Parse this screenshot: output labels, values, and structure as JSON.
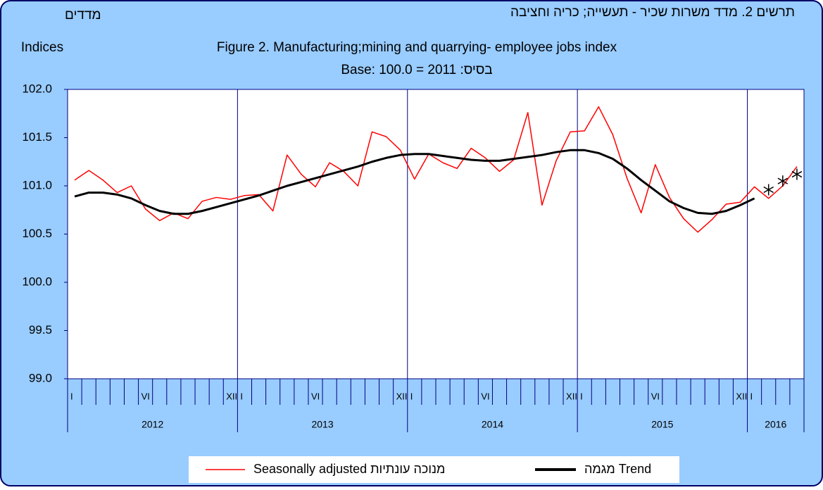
{
  "chart_data": {
    "type": "line",
    "title_he": "תרשים 2. מדד משרות שכיר  - תעשייה; כריה וחציבה",
    "title": "Figure 2. Manufacturing;mining and quarrying- employee jobs index",
    "subtitle": "Base: 100.0 = 2011 :בסיס",
    "ylabel_he": "מדדים",
    "ylabel": "Indices",
    "categories": [
      "I",
      null,
      null,
      null,
      null,
      "VI",
      null,
      null,
      null,
      null,
      null,
      "XII",
      "I",
      null,
      null,
      null,
      null,
      "VI",
      null,
      null,
      null,
      null,
      null,
      "XII",
      "I",
      null,
      null,
      null,
      null,
      "VI",
      null,
      null,
      null,
      null,
      null,
      "XII",
      "I",
      null,
      null,
      null,
      null,
      "VI",
      null,
      null,
      null,
      null,
      null,
      "XII",
      "I",
      null,
      null,
      null
    ],
    "years": [
      "2012",
      "2013",
      "2014",
      "2015",
      "2016"
    ],
    "series": [
      {
        "name": "Seasonally adjusted מנוכה עונתיות",
        "color": "#ff0000",
        "values": [
          101.06,
          101.16,
          101.06,
          100.93,
          101.0,
          100.76,
          100.64,
          100.72,
          100.66,
          100.84,
          100.88,
          100.86,
          100.9,
          100.91,
          100.74,
          101.32,
          101.12,
          100.99,
          101.24,
          101.15,
          101.0,
          101.56,
          101.51,
          101.37,
          101.07,
          101.33,
          101.24,
          101.18,
          101.39,
          101.29,
          101.15,
          101.27,
          101.76,
          100.8,
          101.26,
          101.56,
          101.57,
          101.82,
          101.53,
          101.08,
          100.72,
          101.22,
          100.88,
          100.66,
          100.52,
          100.65,
          100.81,
          100.83,
          100.99,
          100.87,
          101.0,
          101.2
        ]
      },
      {
        "name": "מגמה Trend",
        "color": "#000000",
        "values": [
          100.89,
          100.93,
          100.93,
          100.91,
          100.87,
          100.8,
          100.74,
          100.71,
          100.71,
          100.74,
          100.78,
          100.82,
          100.86,
          100.9,
          100.95,
          101.0,
          101.04,
          101.08,
          101.12,
          101.16,
          101.2,
          101.25,
          101.29,
          101.32,
          101.33,
          101.33,
          101.31,
          101.29,
          101.27,
          101.26,
          101.26,
          101.28,
          101.3,
          101.32,
          101.35,
          101.37,
          101.37,
          101.34,
          101.28,
          101.18,
          101.06,
          100.95,
          100.84,
          100.77,
          100.72,
          100.71,
          100.74,
          100.8,
          100.87,
          null,
          null,
          null
        ]
      }
    ],
    "trend_estimates": [
      null,
      null,
      null,
      null,
      null,
      null,
      null,
      null,
      null,
      null,
      null,
      null,
      null,
      null,
      null,
      null,
      null,
      null,
      null,
      null,
      null,
      null,
      null,
      null,
      null,
      null,
      null,
      null,
      null,
      null,
      null,
      null,
      null,
      null,
      null,
      null,
      null,
      null,
      null,
      null,
      null,
      null,
      null,
      null,
      null,
      null,
      null,
      null,
      null,
      100.96,
      101.05,
      101.12
    ],
    "ylim": [
      99.0,
      102.0
    ],
    "yticks": [
      {
        "value": 99.0,
        "label": "99.0"
      },
      {
        "value": 99.5,
        "label": "99.5"
      },
      {
        "value": 100.0,
        "label": "100.0"
      },
      {
        "value": 100.5,
        "label": "100.5"
      },
      {
        "value": 101.0,
        "label": "101.0"
      },
      {
        "value": 101.5,
        "label": "101.5"
      },
      {
        "value": 102.0,
        "label": "102.0"
      }
    ]
  }
}
